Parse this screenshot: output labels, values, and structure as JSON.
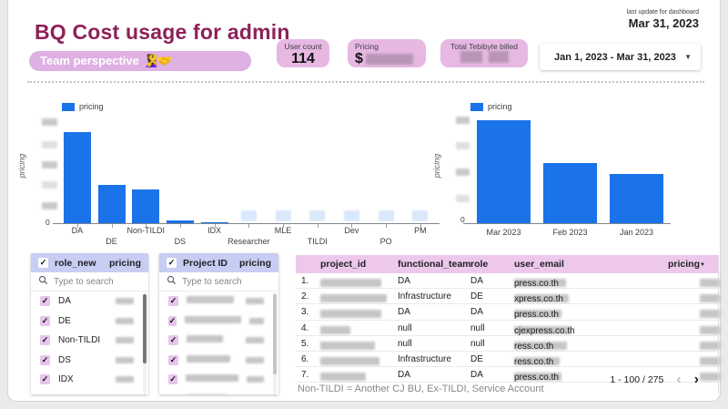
{
  "header": {
    "title": "BQ Cost usage for admin",
    "badge": "Team perspective 🧏‍♀️🤝",
    "last_update_label": "last update for dashboard",
    "last_update_date": "Mar 31, 2023",
    "date_range": "Jan 1, 2023 - Mar 31, 2023"
  },
  "scorecards": [
    {
      "label": "User count",
      "value": "114",
      "value_redacted": false
    },
    {
      "label": "Pricing",
      "value": "$",
      "value_redacted": true
    },
    {
      "label": "Total Tebibyte billed",
      "value": "",
      "value_redacted": true
    }
  ],
  "chart_data": [
    {
      "type": "bar",
      "legend": [
        "pricing"
      ],
      "ylabel": "pricing",
      "categories": [
        "DA",
        "DE",
        "Non-TILDI",
        "DS",
        "IDX",
        "Researcher",
        "MLE",
        "TILDI",
        "Dev",
        "PO",
        "PM"
      ],
      "values_pct_of_max": [
        1.0,
        0.42,
        0.37,
        0.03,
        0.01,
        null,
        null,
        null,
        null,
        null,
        null
      ],
      "redacted_categories": [
        "Researcher",
        "MLE",
        "TILDI",
        "Dev",
        "PO",
        "PM"
      ],
      "y_axis": {
        "zero_label": "0",
        "tick_labels_redacted": true,
        "tick_count_redacted": 5
      },
      "series_color": "#1a73e8"
    },
    {
      "type": "bar",
      "legend": [
        "pricing"
      ],
      "ylabel": "pricing",
      "categories": [
        "Mar 2023",
        "Feb 2023",
        "Jan 2023"
      ],
      "values_pct_of_max": [
        1.0,
        0.58,
        0.48
      ],
      "y_axis": {
        "zero_label": "0",
        "tick_labels_redacted": true,
        "tick_count_redacted": 4
      },
      "series_color": "#1a73e8"
    }
  ],
  "filters": [
    {
      "header": "role_new",
      "metric": "pricing",
      "search_placeholder": "Type to search",
      "values_redacted": true,
      "items": [
        {
          "label": "DA",
          "checked": true,
          "label_redacted": false
        },
        {
          "label": "DE",
          "checked": true,
          "label_redacted": false
        },
        {
          "label": "Non-TILDI",
          "checked": true,
          "label_redacted": false
        },
        {
          "label": "DS",
          "checked": true,
          "label_redacted": false
        },
        {
          "label": "IDX",
          "checked": true,
          "label_redacted": false
        },
        {
          "label": "",
          "checked": true,
          "label_redacted": false,
          "partial": true
        }
      ]
    },
    {
      "header": "Project ID",
      "metric": "pricing",
      "search_placeholder": "Type to search",
      "values_redacted": true,
      "items": [
        {
          "label": "",
          "checked": true,
          "label_redacted": true
        },
        {
          "label": "",
          "checked": true,
          "label_redacted": true
        },
        {
          "label": "",
          "checked": true,
          "label_redacted": true
        },
        {
          "label": "",
          "checked": true,
          "label_redacted": true
        },
        {
          "label": "",
          "checked": true,
          "label_redacted": true
        },
        {
          "label": "",
          "checked": true,
          "label_redacted": true,
          "partial": true
        }
      ]
    }
  ],
  "table": {
    "columns": [
      "project_id",
      "functional_team",
      "role",
      "user_email",
      "pricing"
    ],
    "sorted_by": "pricing",
    "sort_direction": "desc",
    "rows": [
      {
        "index": "1.",
        "project_id_redacted": true,
        "functional_team": "DA",
        "role": "DA",
        "user_email_suffix": "press.co.th",
        "pricing_redacted": true
      },
      {
        "index": "2.",
        "project_id_redacted": true,
        "functional_team": "Infrastructure",
        "role": "DE",
        "user_email_suffix": "xpress.co.th",
        "pricing_redacted": true
      },
      {
        "index": "3.",
        "project_id_redacted": true,
        "functional_team": "DA",
        "role": "DA",
        "user_email_suffix": "press.co.th",
        "pricing_redacted": true
      },
      {
        "index": "4.",
        "project_id_redacted": true,
        "functional_team": "null",
        "role": "null",
        "user_email_suffix": "cjexpress.co.th",
        "pricing_redacted": true
      },
      {
        "index": "5.",
        "project_id_redacted": true,
        "functional_team": "null",
        "role": "null",
        "user_email_suffix": "ress.co.th",
        "pricing_redacted": true
      },
      {
        "index": "6.",
        "project_id_redacted": true,
        "functional_team": "Infrastructure",
        "role": "DE",
        "user_email_suffix": "ress.co.th",
        "pricing_redacted": true
      },
      {
        "index": "7.",
        "project_id_redacted": true,
        "functional_team": "DA",
        "role": "DA",
        "user_email_suffix": "press.co.th",
        "pricing_redacted": true
      }
    ],
    "pagination": {
      "range": "1 - 100 / 275",
      "prev_enabled": false,
      "next_enabled": true
    },
    "footnote": "Non-TILDI = Another CJ BU, Ex-TILDI, Service Account"
  },
  "colors": {
    "accent_blue": "#1a73e8",
    "brand_maroon": "#8e2159",
    "scorecard_pink": "#e6b8e2",
    "filter_header_lavender": "#c8cdf3",
    "table_header_pink": "#edc8eb",
    "redacted_gray": "#c6c6c6",
    "redacted_light_blue": "#d9e8fb"
  }
}
